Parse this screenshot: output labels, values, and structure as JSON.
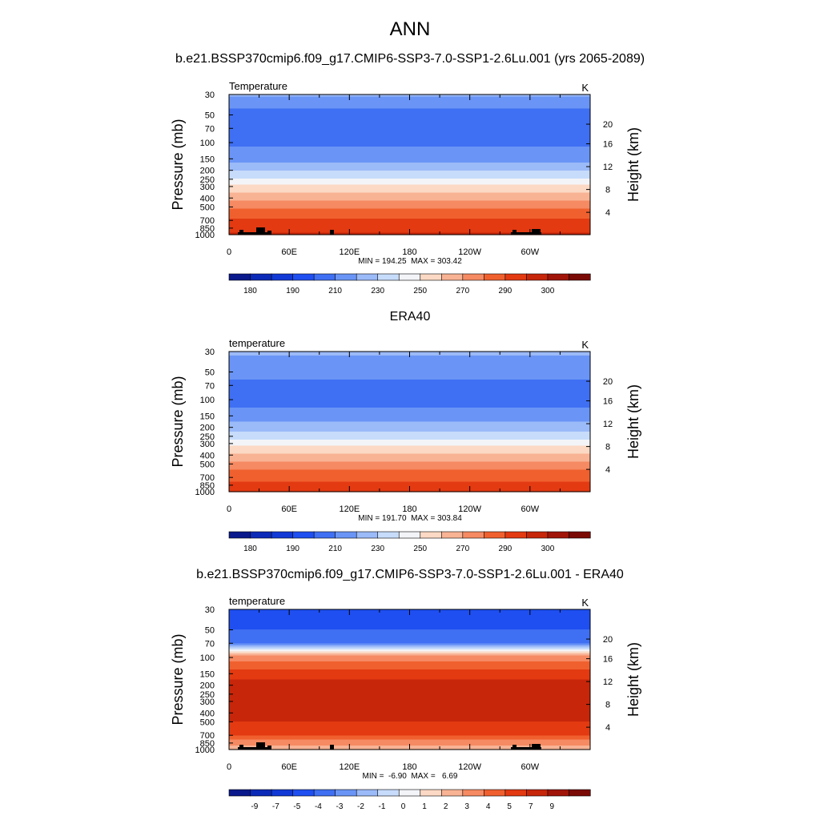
{
  "figure_title": "ANN",
  "colors": {
    "abs_palette": [
      "#0a1a8c",
      "#0c2ab8",
      "#1239d6",
      "#1f4ff0",
      "#3f6ff2",
      "#6a95f6",
      "#9bbaf8",
      "#c7dcfb",
      "#f3f4f8",
      "#fbd9c4",
      "#f8b394",
      "#f68a62",
      "#f0602f",
      "#e33a12",
      "#c7260a",
      "#a01508",
      "#7a0a05"
    ],
    "diff_palette": [
      "#0a1a8c",
      "#0c2ab8",
      "#1239d6",
      "#1f4ff0",
      "#3f6ff2",
      "#6a95f6",
      "#9bbaf8",
      "#c7dcfb",
      "#f3f4f8",
      "#fbd9c4",
      "#f8b394",
      "#f68a62",
      "#f0602f",
      "#e33a12",
      "#c7260a",
      "#a01508",
      "#7a0a05"
    ],
    "topography": "#000000"
  },
  "chart_data": [
    {
      "type": "heatmap",
      "title": "b.e21.BSSP370cmip6.f09_g17.CMIP6-SSP3-7.0-SSP1-2.6Lu.001 (yrs 2065-2089)",
      "left_label": "Temperature",
      "unit": "K",
      "ylabel": "Pressure (mb)",
      "y2label": "Height (km)",
      "x_ticks": [
        "0",
        "60E",
        "120E",
        "180",
        "120W",
        "60W"
      ],
      "x_tick_lons": [
        0,
        60,
        120,
        180,
        240,
        300
      ],
      "y_ticks": [
        "30",
        "50",
        "70",
        "100",
        "150",
        "200",
        "250",
        "300",
        "400",
        "500",
        "700",
        "850",
        "1000"
      ],
      "y2_ticks": [
        "20",
        "16",
        "12",
        "8",
        "4"
      ],
      "ylim": [
        1000,
        30
      ],
      "profile": {
        "pressure": [
          30,
          50,
          70,
          100,
          150,
          200,
          250,
          300,
          400,
          500,
          700,
          850,
          1000
        ],
        "value": [
          211,
          196,
          196,
          197,
          207,
          219,
          230,
          242,
          258,
          269,
          281,
          287,
          291
        ]
      },
      "minmax": "MIN = 194.25  MAX = 303.42",
      "colorbar_labels": [
        "180",
        "190",
        "210",
        "230",
        "250",
        "270",
        "290",
        "300"
      ],
      "topography": true
    },
    {
      "type": "heatmap",
      "title": "ERA40",
      "left_label": "temperature",
      "unit": "K",
      "ylabel": "Pressure (mb)",
      "y2label": "Height (km)",
      "x_ticks": [
        "0",
        "60E",
        "120E",
        "180",
        "120W",
        "60W"
      ],
      "x_tick_lons": [
        0,
        60,
        120,
        180,
        240,
        300
      ],
      "y_ticks": [
        "30",
        "50",
        "70",
        "100",
        "150",
        "200",
        "250",
        "300",
        "400",
        "500",
        "700",
        "850",
        "1000"
      ],
      "y2_ticks": [
        "20",
        "16",
        "12",
        "8",
        "4"
      ],
      "ylim": [
        1000,
        30
      ],
      "profile": {
        "pressure": [
          30,
          50,
          70,
          100,
          150,
          200,
          250,
          300,
          400,
          500,
          700,
          850,
          1000
        ],
        "value": [
          211,
          206,
          196,
          196,
          205,
          216,
          226,
          236,
          252,
          264,
          277,
          284,
          289
        ]
      },
      "minmax": "MIN = 191.70  MAX = 303.84",
      "colorbar_labels": [
        "180",
        "190",
        "210",
        "230",
        "250",
        "270",
        "290",
        "300"
      ],
      "topography": false
    },
    {
      "type": "heatmap",
      "title": "b.e21.BSSP370cmip6.f09_g17.CMIP6-SSP3-7.0-SSP1-2.6Lu.001 - ERA40",
      "left_label": "temperature",
      "unit": "K",
      "ylabel": "Pressure (mb)",
      "y2label": "Height (km)",
      "x_ticks": [
        "0",
        "60E",
        "120E",
        "180",
        "120W",
        "60W"
      ],
      "x_tick_lons": [
        0,
        60,
        120,
        180,
        240,
        300
      ],
      "y_ticks": [
        "30",
        "50",
        "70",
        "100",
        "150",
        "200",
        "250",
        "300",
        "400",
        "500",
        "700",
        "850",
        "1000"
      ],
      "y2_ticks": [
        "20",
        "16",
        "12",
        "8",
        "4"
      ],
      "ylim": [
        1000,
        30
      ],
      "profile": {
        "pressure": [
          30,
          50,
          70,
          85,
          100,
          150,
          200,
          250,
          300,
          400,
          500,
          700,
          850,
          1000
        ],
        "value": [
          -5.5,
          -5,
          -4,
          0,
          2.5,
          4.5,
          5.5,
          5.5,
          5.5,
          5.5,
          5,
          4,
          2.5,
          1.5
        ]
      },
      "minmax": "MIN =  -6.90  MAX =   6.69",
      "colorbar_labels": [
        "-9",
        "-7",
        "-5",
        "-4",
        "-3",
        "-2",
        "-1",
        "0",
        "1",
        "2",
        "3",
        "4",
        "5",
        "7",
        "9"
      ],
      "topography": true
    }
  ]
}
